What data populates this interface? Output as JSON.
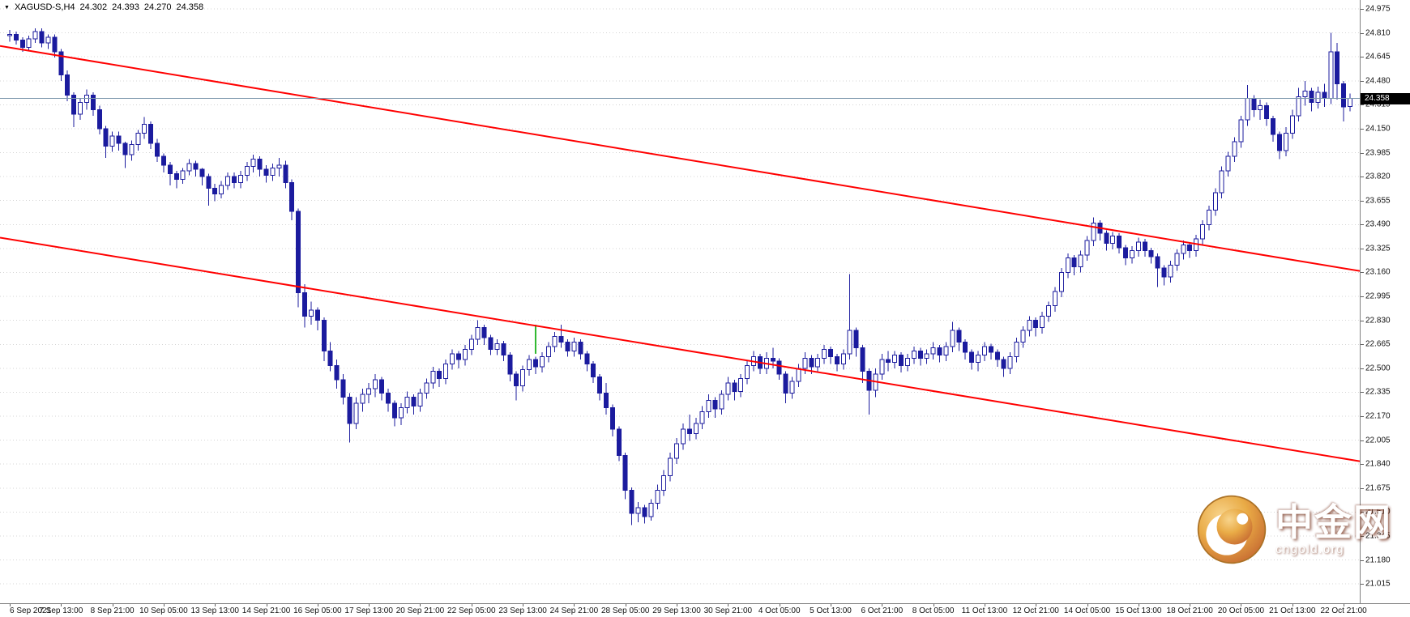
{
  "header": {
    "symbol_tf": "XAGUSD-S,H4",
    "open": "24.302",
    "high": "24.393",
    "low": "24.270",
    "close": "24.358"
  },
  "watermark": {
    "site_name": "中金网",
    "site_url": "cngold.org"
  },
  "colors": {
    "background": "#ffffff",
    "candle": "#1b1b9e",
    "bull_fill": "#ffffff",
    "grid": "#d4d4d4",
    "trendline": "#ff0000",
    "price_line": "#7b96ac",
    "tag_bg": "#000000",
    "tag_text": "#ffffff",
    "axis_text": "#111111",
    "marker": "#2eb82e"
  },
  "chart_data": {
    "type": "candlestick",
    "symbol": "XAGUSD-S",
    "timeframe": "H4",
    "current_price": 24.358,
    "current_price_label": "24.358",
    "bars_per_label": 8,
    "x_labels": [
      "6 Sep 2021",
      "7 Sep 13:00",
      "8 Sep 21:00",
      "10 Sep 05:00",
      "13 Sep 13:00",
      "14 Sep 21:00",
      "16 Sep 05:00",
      "17 Sep 13:00",
      "20 Sep 21:00",
      "22 Sep 05:00",
      "23 Sep 13:00",
      "24 Sep 21:00",
      "28 Sep 05:00",
      "29 Sep 13:00",
      "30 Sep 21:00",
      "4 Oct 05:00",
      "5 Oct 13:00",
      "6 Oct 21:00",
      "8 Oct 05:00",
      "11 Oct 13:00",
      "12 Oct 21:00",
      "14 Oct 05:00",
      "15 Oct 13:00",
      "18 Oct 21:00",
      "20 Oct 05:00",
      "21 Oct 13:00",
      "22 Oct 21:00"
    ],
    "y_axis": {
      "top_price": 24.975,
      "price_step": 0.165,
      "labels": [
        "24.975",
        "24.810",
        "24.645",
        "24.480",
        "24.315",
        "24.150",
        "23.985",
        "23.820",
        "23.655",
        "23.490",
        "23.325",
        "23.160",
        "22.995",
        "22.830",
        "22.665",
        "22.500",
        "22.335",
        "22.170",
        "22.005",
        "21.840",
        "21.675",
        "21.510",
        "21.345",
        "21.180",
        "21.015"
      ]
    },
    "trendlines": [
      {
        "name": "upper",
        "price_left": 24.72,
        "price_right": 23.17
      },
      {
        "name": "lower",
        "price_left": 23.4,
        "price_right": 21.86
      }
    ],
    "marker": {
      "bar_index": 82,
      "price_from": 22.8,
      "price_to": 22.6
    },
    "candles": [
      [
        24.79,
        24.83,
        24.75,
        24.8
      ],
      [
        24.8,
        24.82,
        24.73,
        24.76
      ],
      [
        24.76,
        24.78,
        24.68,
        24.71
      ],
      [
        24.71,
        24.79,
        24.69,
        24.77
      ],
      [
        24.77,
        24.84,
        24.74,
        24.82
      ],
      [
        24.82,
        24.84,
        24.71,
        24.74
      ],
      [
        24.74,
        24.8,
        24.7,
        24.78
      ],
      [
        24.78,
        24.8,
        24.64,
        24.68
      ],
      [
        24.68,
        24.7,
        24.48,
        24.52
      ],
      [
        24.52,
        24.55,
        24.34,
        24.38
      ],
      [
        24.38,
        24.4,
        24.16,
        24.25
      ],
      [
        24.25,
        24.36,
        24.21,
        24.33
      ],
      [
        24.33,
        24.42,
        24.28,
        24.38
      ],
      [
        24.38,
        24.4,
        24.24,
        24.28
      ],
      [
        24.28,
        24.31,
        24.11,
        24.15
      ],
      [
        24.15,
        24.17,
        23.95,
        24.03
      ],
      [
        24.03,
        24.13,
        23.99,
        24.1
      ],
      [
        24.1,
        24.13,
        24.0,
        24.05
      ],
      [
        24.05,
        24.06,
        23.88,
        23.97
      ],
      [
        23.97,
        24.07,
        23.93,
        24.04
      ],
      [
        24.04,
        24.14,
        24.0,
        24.12
      ],
      [
        24.12,
        24.23,
        24.08,
        24.18
      ],
      [
        24.18,
        24.2,
        24.01,
        24.05
      ],
      [
        24.05,
        24.08,
        23.92,
        23.96
      ],
      [
        23.96,
        23.98,
        23.85,
        23.9
      ],
      [
        23.9,
        23.92,
        23.76,
        23.84
      ],
      [
        23.84,
        23.86,
        23.74,
        23.8
      ],
      [
        23.8,
        23.88,
        23.77,
        23.86
      ],
      [
        23.86,
        23.94,
        23.83,
        23.91
      ],
      [
        23.91,
        23.93,
        23.82,
        23.87
      ],
      [
        23.87,
        23.88,
        23.76,
        23.82
      ],
      [
        23.82,
        23.84,
        23.62,
        23.74
      ],
      [
        23.74,
        23.77,
        23.65,
        23.7
      ],
      [
        23.7,
        23.79,
        23.67,
        23.76
      ],
      [
        23.76,
        23.85,
        23.73,
        23.82
      ],
      [
        23.82,
        23.85,
        23.74,
        23.78
      ],
      [
        23.78,
        23.86,
        23.74,
        23.83
      ],
      [
        23.83,
        23.92,
        23.79,
        23.89
      ],
      [
        23.89,
        23.97,
        23.85,
        23.94
      ],
      [
        23.94,
        23.96,
        23.82,
        23.87
      ],
      [
        23.87,
        23.9,
        23.78,
        23.83
      ],
      [
        23.83,
        23.91,
        23.79,
        23.88
      ],
      [
        23.88,
        23.95,
        23.82,
        23.9
      ],
      [
        23.9,
        23.93,
        23.74,
        23.78
      ],
      [
        23.78,
        23.8,
        23.52,
        23.58
      ],
      [
        23.58,
        23.6,
        22.92,
        23.02
      ],
      [
        23.02,
        23.08,
        22.78,
        22.86
      ],
      [
        22.86,
        22.96,
        22.8,
        22.9
      ],
      [
        22.9,
        22.92,
        22.76,
        22.83
      ],
      [
        22.83,
        22.85,
        22.55,
        22.62
      ],
      [
        22.62,
        22.68,
        22.48,
        22.52
      ],
      [
        22.52,
        22.56,
        22.36,
        22.42
      ],
      [
        22.42,
        22.46,
        22.25,
        22.3
      ],
      [
        22.3,
        22.33,
        21.99,
        22.12
      ],
      [
        22.12,
        22.3,
        22.08,
        22.26
      ],
      [
        22.26,
        22.36,
        22.2,
        22.32
      ],
      [
        22.32,
        22.4,
        22.26,
        22.36
      ],
      [
        22.36,
        22.46,
        22.3,
        22.42
      ],
      [
        22.42,
        22.44,
        22.28,
        22.33
      ],
      [
        22.33,
        22.36,
        22.2,
        22.26
      ],
      [
        22.26,
        22.28,
        22.1,
        22.16
      ],
      [
        22.16,
        22.26,
        22.11,
        22.23
      ],
      [
        22.23,
        22.34,
        22.19,
        22.3
      ],
      [
        22.3,
        22.32,
        22.18,
        22.24
      ],
      [
        22.24,
        22.36,
        22.2,
        22.33
      ],
      [
        22.33,
        22.43,
        22.29,
        22.4
      ],
      [
        22.4,
        22.51,
        22.36,
        22.48
      ],
      [
        22.48,
        22.5,
        22.37,
        22.43
      ],
      [
        22.43,
        22.56,
        22.39,
        22.53
      ],
      [
        22.53,
        22.63,
        22.49,
        22.6
      ],
      [
        22.6,
        22.62,
        22.5,
        22.56
      ],
      [
        22.56,
        22.66,
        22.52,
        22.63
      ],
      [
        22.63,
        22.73,
        22.59,
        22.7
      ],
      [
        22.7,
        22.83,
        22.66,
        22.78
      ],
      [
        22.78,
        22.8,
        22.66,
        22.71
      ],
      [
        22.71,
        22.73,
        22.59,
        22.63
      ],
      [
        22.63,
        22.7,
        22.59,
        22.67
      ],
      [
        22.67,
        22.69,
        22.55,
        22.59
      ],
      [
        22.59,
        22.61,
        22.41,
        22.46
      ],
      [
        22.46,
        22.48,
        22.28,
        22.38
      ],
      [
        22.38,
        22.52,
        22.34,
        22.49
      ],
      [
        22.49,
        22.59,
        22.45,
        22.56
      ],
      [
        22.56,
        22.58,
        22.46,
        22.51
      ],
      [
        22.51,
        22.61,
        22.47,
        22.58
      ],
      [
        22.58,
        22.68,
        22.54,
        22.65
      ],
      [
        22.65,
        22.75,
        22.61,
        22.72
      ],
      [
        22.72,
        22.8,
        22.64,
        22.68
      ],
      [
        22.68,
        22.7,
        22.58,
        22.62
      ],
      [
        22.62,
        22.71,
        22.58,
        22.68
      ],
      [
        22.68,
        22.7,
        22.56,
        22.6
      ],
      [
        22.6,
        22.62,
        22.48,
        22.53
      ],
      [
        22.53,
        22.55,
        22.4,
        22.44
      ],
      [
        22.44,
        22.46,
        22.28,
        22.33
      ],
      [
        22.33,
        22.4,
        22.18,
        22.23
      ],
      [
        22.23,
        22.25,
        22.03,
        22.08
      ],
      [
        22.08,
        22.1,
        21.86,
        21.9
      ],
      [
        21.9,
        21.92,
        21.6,
        21.66
      ],
      [
        21.66,
        21.68,
        21.42,
        21.5
      ],
      [
        21.5,
        21.58,
        21.44,
        21.54
      ],
      [
        21.54,
        21.56,
        21.43,
        21.48
      ],
      [
        21.48,
        21.6,
        21.45,
        21.57
      ],
      [
        21.57,
        21.7,
        21.53,
        21.66
      ],
      [
        21.66,
        21.8,
        21.62,
        21.76
      ],
      [
        21.76,
        21.92,
        21.72,
        21.88
      ],
      [
        21.88,
        22.02,
        21.84,
        21.98
      ],
      [
        21.98,
        22.12,
        21.94,
        22.08
      ],
      [
        22.08,
        22.18,
        22.0,
        22.05
      ],
      [
        22.05,
        22.16,
        22.01,
        22.12
      ],
      [
        22.12,
        22.24,
        22.08,
        22.2
      ],
      [
        22.2,
        22.32,
        22.16,
        22.28
      ],
      [
        22.28,
        22.3,
        22.16,
        22.22
      ],
      [
        22.22,
        22.35,
        22.18,
        22.32
      ],
      [
        22.32,
        22.44,
        22.28,
        22.4
      ],
      [
        22.4,
        22.42,
        22.28,
        22.34
      ],
      [
        22.34,
        22.46,
        22.3,
        22.43
      ],
      [
        22.43,
        22.55,
        22.39,
        22.52
      ],
      [
        22.52,
        22.62,
        22.48,
        22.58
      ],
      [
        22.58,
        22.6,
        22.46,
        22.5
      ],
      [
        22.5,
        22.61,
        22.46,
        22.57
      ],
      [
        22.57,
        22.64,
        22.5,
        22.55
      ],
      [
        22.55,
        22.57,
        22.42,
        22.46
      ],
      [
        22.46,
        22.48,
        22.26,
        22.33
      ],
      [
        22.33,
        22.44,
        22.29,
        22.41
      ],
      [
        22.41,
        22.53,
        22.37,
        22.5
      ],
      [
        22.5,
        22.61,
        22.46,
        22.57
      ],
      [
        22.57,
        22.59,
        22.46,
        22.51
      ],
      [
        22.51,
        22.6,
        22.47,
        22.57
      ],
      [
        22.57,
        22.66,
        22.53,
        22.63
      ],
      [
        22.63,
        22.65,
        22.53,
        22.58
      ],
      [
        22.58,
        22.6,
        22.48,
        22.53
      ],
      [
        22.53,
        22.63,
        22.49,
        22.6
      ],
      [
        22.6,
        23.15,
        22.56,
        22.76
      ],
      [
        22.76,
        22.78,
        22.58,
        22.64
      ],
      [
        22.64,
        22.66,
        22.4,
        22.48
      ],
      [
        22.48,
        22.5,
        22.18,
        22.35
      ],
      [
        22.35,
        22.5,
        22.3,
        22.46
      ],
      [
        22.46,
        22.6,
        22.42,
        22.56
      ],
      [
        22.56,
        22.62,
        22.48,
        22.54
      ],
      [
        22.54,
        22.62,
        22.5,
        22.59
      ],
      [
        22.59,
        22.61,
        22.47,
        22.52
      ],
      [
        22.52,
        22.6,
        22.48,
        22.57
      ],
      [
        22.57,
        22.65,
        22.53,
        22.62
      ],
      [
        22.62,
        22.64,
        22.52,
        22.57
      ],
      [
        22.57,
        22.63,
        22.53,
        22.6
      ],
      [
        22.6,
        22.68,
        22.56,
        22.64
      ],
      [
        22.64,
        22.66,
        22.54,
        22.59
      ],
      [
        22.59,
        22.68,
        22.55,
        22.65
      ],
      [
        22.65,
        22.82,
        22.61,
        22.76
      ],
      [
        22.76,
        22.78,
        22.62,
        22.68
      ],
      [
        22.68,
        22.7,
        22.56,
        22.61
      ],
      [
        22.61,
        22.63,
        22.49,
        22.54
      ],
      [
        22.54,
        22.62,
        22.48,
        22.59
      ],
      [
        22.59,
        22.68,
        22.55,
        22.65
      ],
      [
        22.65,
        22.67,
        22.56,
        22.61
      ],
      [
        22.61,
        22.63,
        22.51,
        22.56
      ],
      [
        22.56,
        22.58,
        22.44,
        22.5
      ],
      [
        22.5,
        22.61,
        22.46,
        22.58
      ],
      [
        22.58,
        22.71,
        22.54,
        22.68
      ],
      [
        22.68,
        22.79,
        22.64,
        22.76
      ],
      [
        22.76,
        22.86,
        22.72,
        22.83
      ],
      [
        22.83,
        22.85,
        22.72,
        22.78
      ],
      [
        22.78,
        22.89,
        22.74,
        22.86
      ],
      [
        22.86,
        22.96,
        22.82,
        22.93
      ],
      [
        22.93,
        23.06,
        22.89,
        23.03
      ],
      [
        23.03,
        23.19,
        22.99,
        23.16
      ],
      [
        23.16,
        23.29,
        23.12,
        23.26
      ],
      [
        23.26,
        23.28,
        23.14,
        23.2
      ],
      [
        23.2,
        23.31,
        23.16,
        23.28
      ],
      [
        23.28,
        23.41,
        23.24,
        23.38
      ],
      [
        23.38,
        23.54,
        23.34,
        23.5
      ],
      [
        23.5,
        23.52,
        23.38,
        23.43
      ],
      [
        23.43,
        23.45,
        23.31,
        23.36
      ],
      [
        23.36,
        23.44,
        23.32,
        23.41
      ],
      [
        23.41,
        23.43,
        23.29,
        23.33
      ],
      [
        23.33,
        23.35,
        23.21,
        23.26
      ],
      [
        23.26,
        23.34,
        23.22,
        23.31
      ],
      [
        23.31,
        23.4,
        23.27,
        23.37
      ],
      [
        23.37,
        23.39,
        23.27,
        23.31
      ],
      [
        23.31,
        23.33,
        23.22,
        23.27
      ],
      [
        23.27,
        23.29,
        23.06,
        23.19
      ],
      [
        23.19,
        23.21,
        23.07,
        23.13
      ],
      [
        23.13,
        23.24,
        23.09,
        23.21
      ],
      [
        23.21,
        23.32,
        23.17,
        23.29
      ],
      [
        23.29,
        23.38,
        23.25,
        23.35
      ],
      [
        23.35,
        23.37,
        23.26,
        23.31
      ],
      [
        23.31,
        23.42,
        23.27,
        23.39
      ],
      [
        23.39,
        23.52,
        23.35,
        23.49
      ],
      [
        23.49,
        23.62,
        23.45,
        23.59
      ],
      [
        23.59,
        23.74,
        23.55,
        23.71
      ],
      [
        23.71,
        23.89,
        23.67,
        23.86
      ],
      [
        23.86,
        23.99,
        23.82,
        23.96
      ],
      [
        23.96,
        24.09,
        23.92,
        24.06
      ],
      [
        24.06,
        24.24,
        24.02,
        24.21
      ],
      [
        24.21,
        24.45,
        24.17,
        24.36
      ],
      [
        24.36,
        24.38,
        24.23,
        24.28
      ],
      [
        24.28,
        24.35,
        24.21,
        24.31
      ],
      [
        24.31,
        24.33,
        24.17,
        24.22
      ],
      [
        24.22,
        24.24,
        24.06,
        24.11
      ],
      [
        24.11,
        24.13,
        23.94,
        24.0
      ],
      [
        24.0,
        24.16,
        23.96,
        24.12
      ],
      [
        24.12,
        24.28,
        24.08,
        24.24
      ],
      [
        24.24,
        24.43,
        24.2,
        24.37
      ],
      [
        24.37,
        24.48,
        24.31,
        24.41
      ],
      [
        24.41,
        24.43,
        24.27,
        24.33
      ],
      [
        24.33,
        24.44,
        24.29,
        24.4
      ],
      [
        24.4,
        24.46,
        24.3,
        24.36
      ],
      [
        24.36,
        24.81,
        24.32,
        24.68
      ],
      [
        24.68,
        24.74,
        24.35,
        24.46
      ],
      [
        24.46,
        24.48,
        24.2,
        24.3
      ],
      [
        24.302,
        24.393,
        24.27,
        24.358
      ]
    ]
  }
}
